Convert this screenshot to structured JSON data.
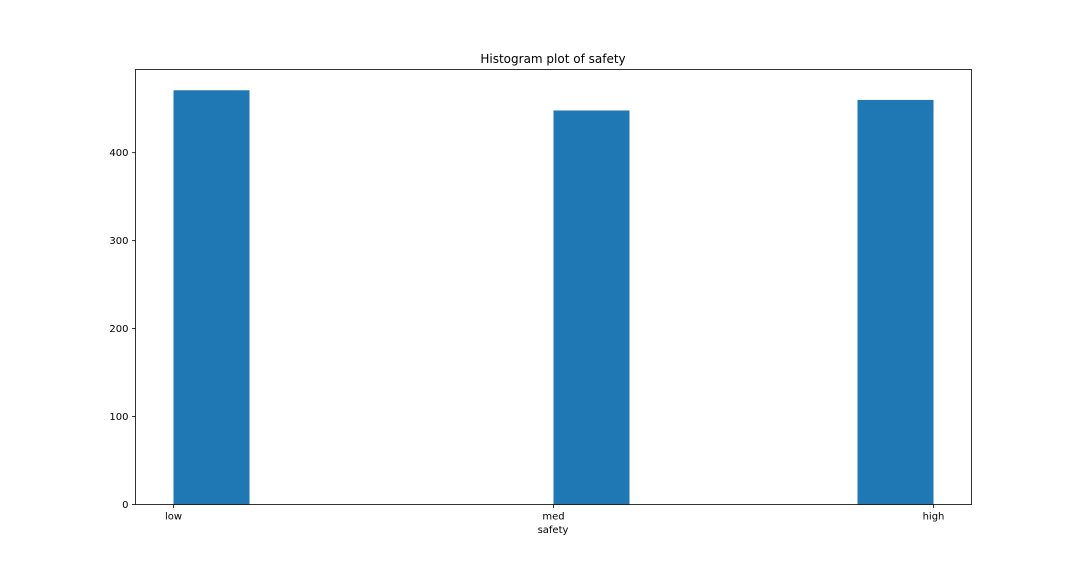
{
  "chart_data": {
    "type": "bar",
    "title": "Histogram plot of safety",
    "xlabel": "safety",
    "ylabel": "",
    "categories": [
      "low",
      "med",
      "high"
    ],
    "values": [
      471,
      448,
      460
    ],
    "x_ticks": [
      "low",
      "med",
      "high"
    ],
    "y_ticks": [
      0,
      100,
      200,
      300,
      400
    ],
    "ylim": [
      0,
      494.6
    ],
    "grid": false,
    "legend": "none",
    "bar_color": "#1f77b4"
  }
}
